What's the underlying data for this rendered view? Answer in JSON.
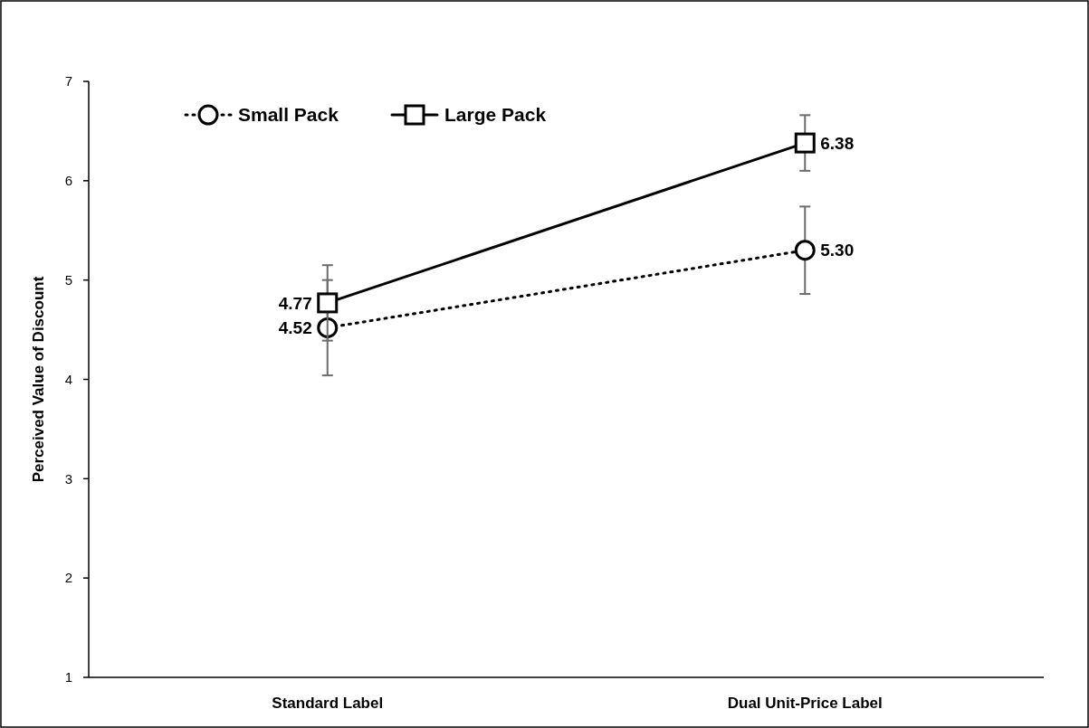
{
  "chart_data": {
    "type": "line",
    "ylabel": "Perceived Value of Discount",
    "categories": [
      "Standard Label",
      "Dual Unit-Price Label"
    ],
    "series": [
      {
        "name": "Small Pack",
        "color": "#000000",
        "values": [
          4.52,
          5.3
        ],
        "value_labels": [
          "4.52",
          "5.30"
        ],
        "errors": [
          0.48,
          0.44
        ],
        "marker": "circle",
        "line_style": "dotted"
      },
      {
        "name": "Large Pack",
        "color": "#000000",
        "values": [
          4.77,
          6.38
        ],
        "value_labels": [
          "4.77",
          "6.38"
        ],
        "errors": [
          0.38,
          0.28
        ],
        "marker": "square",
        "line_style": "solid"
      }
    ],
    "ylim": [
      1,
      7
    ],
    "yticks": [
      1,
      2,
      3,
      4,
      5,
      6,
      7
    ],
    "grid": false,
    "legend": "top left"
  }
}
